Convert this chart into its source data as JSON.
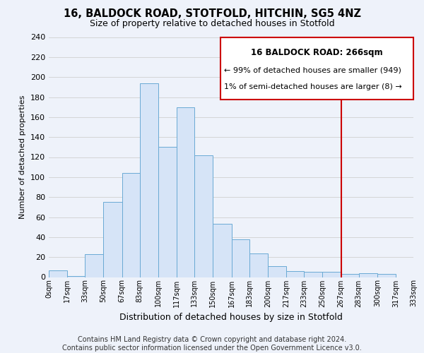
{
  "title": "16, BALDOCK ROAD, STOTFOLD, HITCHIN, SG5 4NZ",
  "subtitle": "Size of property relative to detached houses in Stotfold",
  "xlabel": "Distribution of detached houses by size in Stotfold",
  "ylabel": "Number of detached properties",
  "bin_edges": [
    0,
    17,
    33,
    50,
    67,
    83,
    100,
    117,
    133,
    150,
    167,
    183,
    200,
    217,
    233,
    250,
    267,
    283,
    300,
    317,
    333
  ],
  "bin_labels": [
    "0sqm",
    "17sqm",
    "33sqm",
    "50sqm",
    "67sqm",
    "83sqm",
    "100sqm",
    "117sqm",
    "133sqm",
    "150sqm",
    "167sqm",
    "183sqm",
    "200sqm",
    "217sqm",
    "233sqm",
    "250sqm",
    "267sqm",
    "283sqm",
    "300sqm",
    "317sqm",
    "333sqm"
  ],
  "counts": [
    7,
    1,
    23,
    75,
    104,
    194,
    130,
    170,
    122,
    53,
    38,
    24,
    11,
    6,
    5,
    5,
    3,
    4,
    3,
    0
  ],
  "bar_facecolor": "#d6e4f7",
  "bar_edgecolor": "#6aaad4",
  "grid_color": "#d0d0d0",
  "vline_x": 267,
  "vline_color": "#cc0000",
  "box_text_line1": "16 BALDOCK ROAD: 266sqm",
  "box_text_line2": "← 99% of detached houses are smaller (949)",
  "box_text_line3": "1% of semi-detached houses are larger (8) →",
  "box_facecolor": "#ffffff",
  "box_edgecolor": "#cc0000",
  "ylim": [
    0,
    240
  ],
  "yticks": [
    0,
    20,
    40,
    60,
    80,
    100,
    120,
    140,
    160,
    180,
    200,
    220,
    240
  ],
  "footer_line1": "Contains HM Land Registry data © Crown copyright and database right 2024.",
  "footer_line2": "Contains public sector information licensed under the Open Government Licence v3.0.",
  "title_fontsize": 10.5,
  "subtitle_fontsize": 9,
  "ylabel_fontsize": 8,
  "xlabel_fontsize": 9,
  "footer_fontsize": 7,
  "background_color": "#eef2fa"
}
